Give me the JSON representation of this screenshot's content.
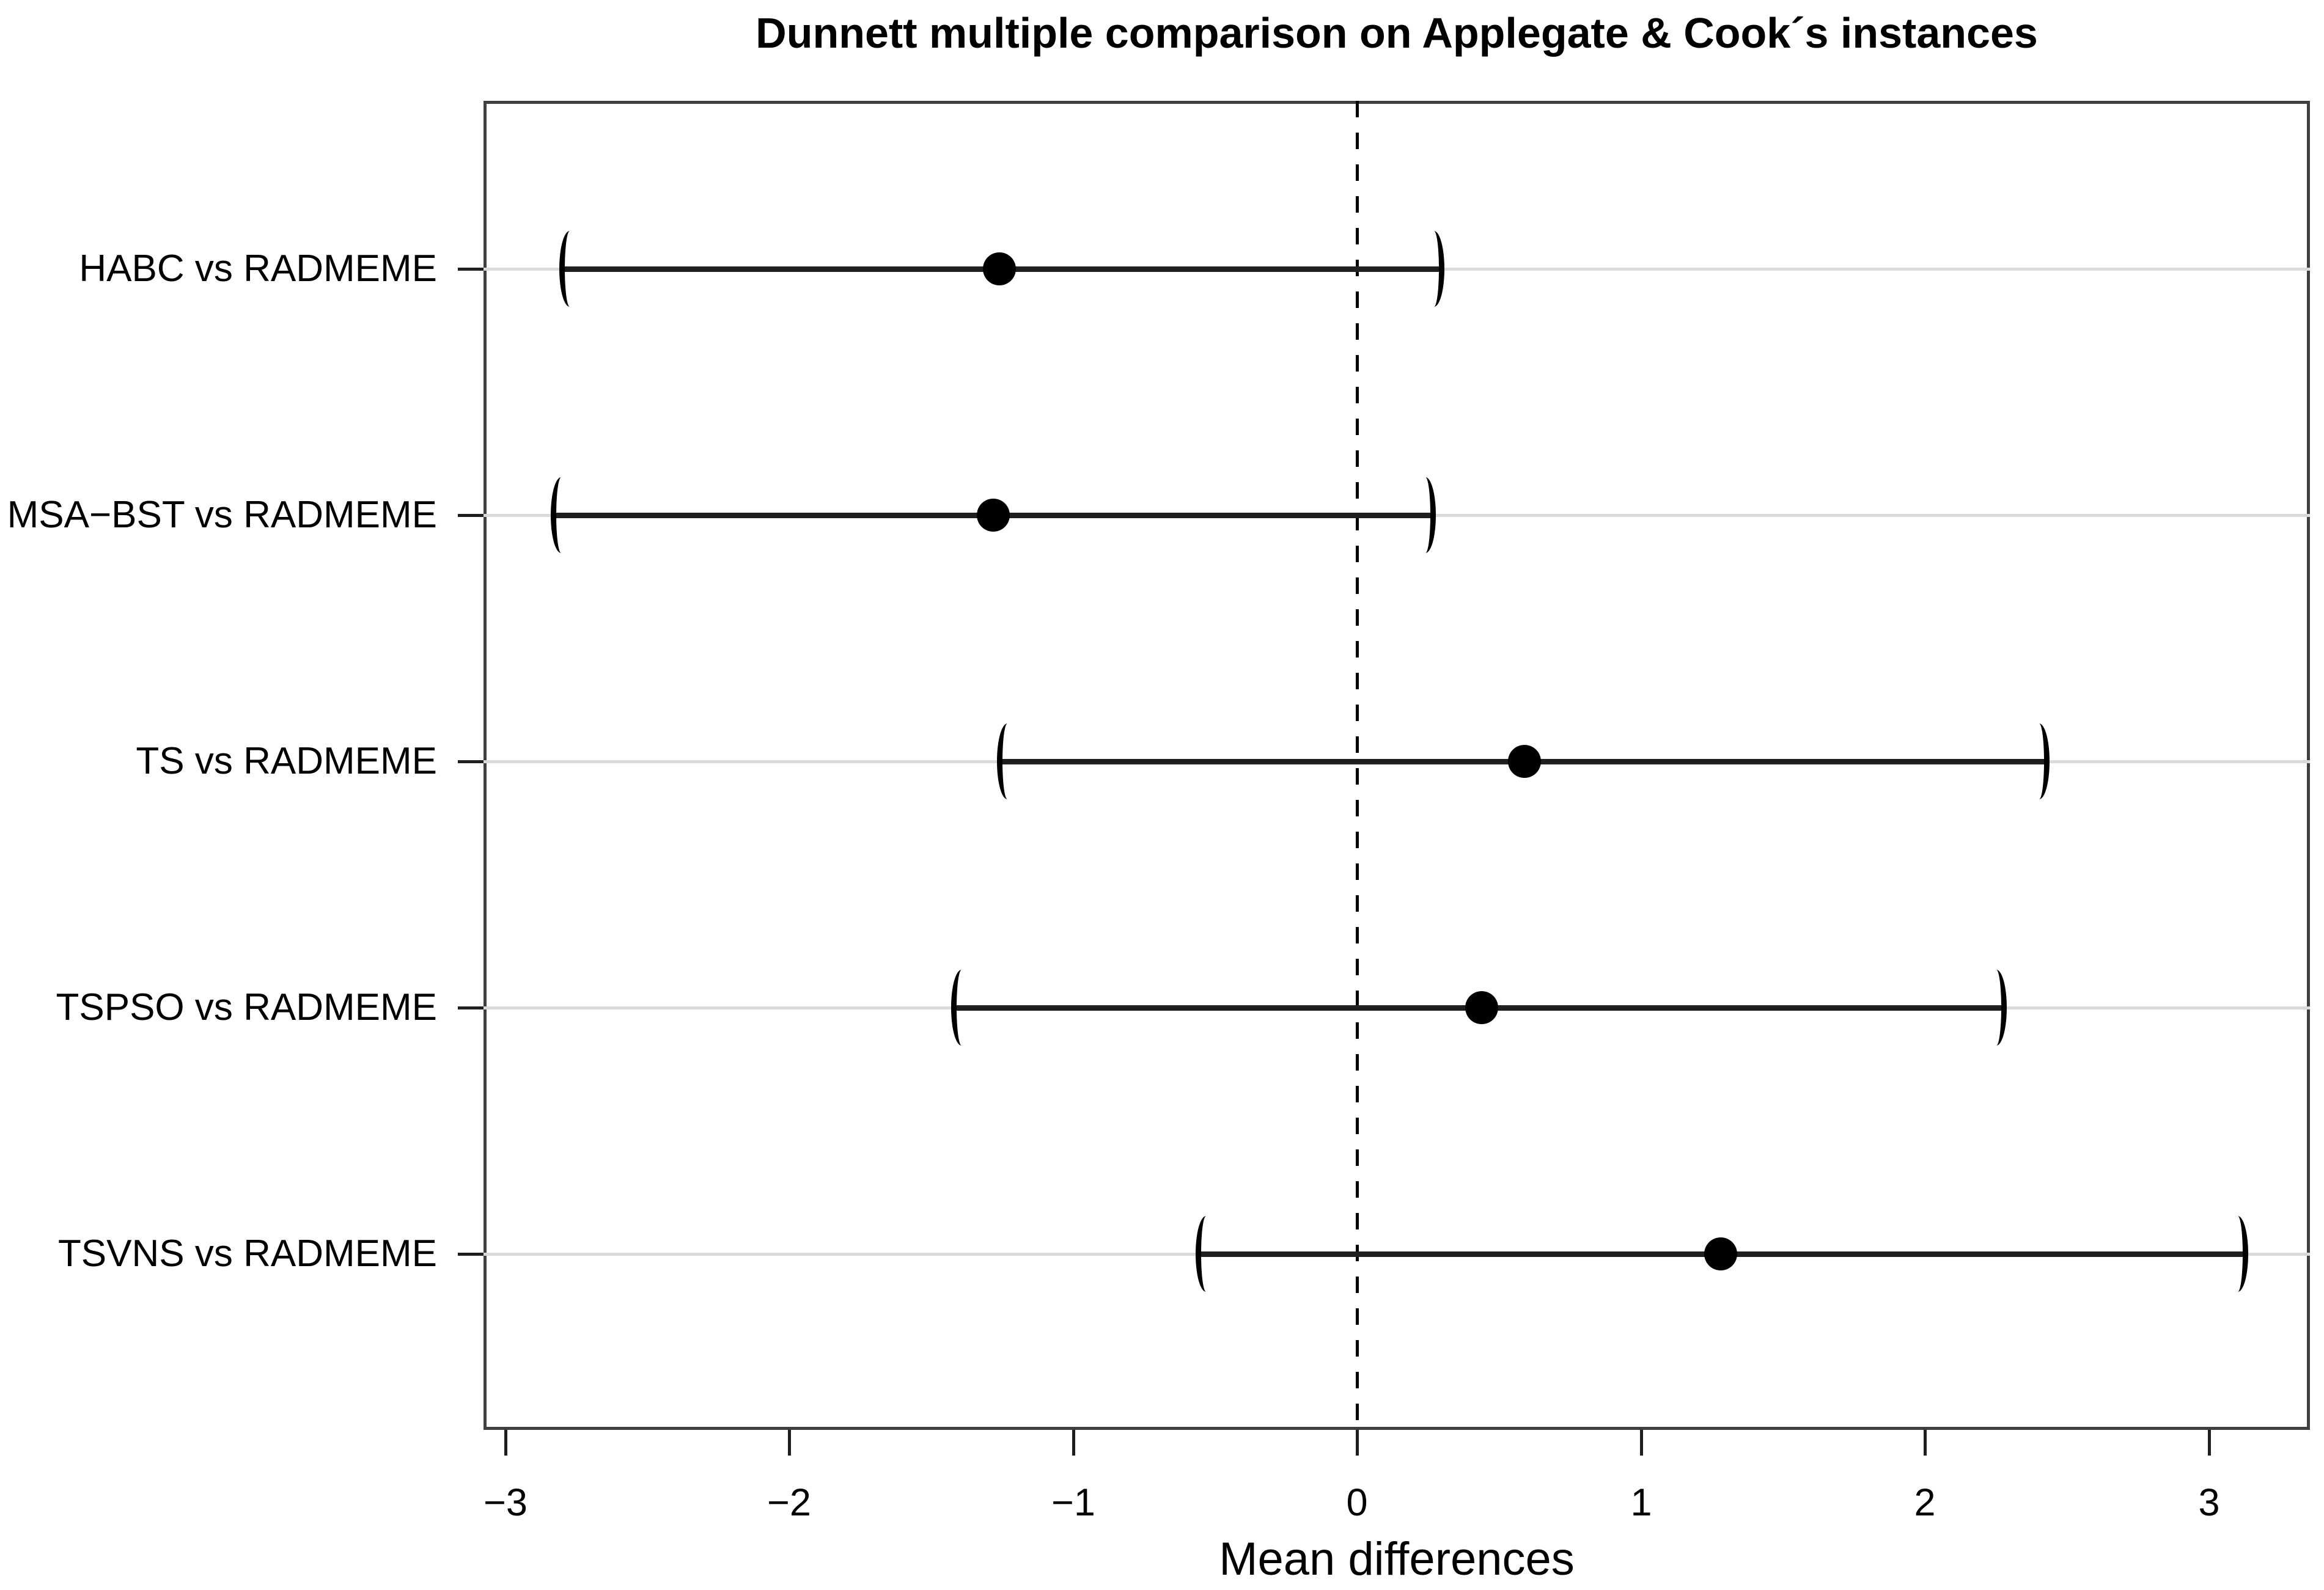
{
  "title": "Dunnett multiple comparison on Applegate & Cook´s instances",
  "colors": {
    "foreground": "#000000",
    "box_border": "#3f3f3f",
    "interval_line": "#1f1f1f",
    "row_guide_line": "#dadada",
    "background": "#ffffff"
  },
  "chart_data": {
    "type": "scatter",
    "subtype": "dunnett-confidence-interval-forest-plot",
    "title": "Dunnett multiple comparison on Applegate & Cook´s instances",
    "xlabel": "Mean differences",
    "ylabel": "",
    "grid": "off",
    "legend": "none",
    "zero_reference_line": {
      "value": 0,
      "style": "dashed"
    },
    "interval_cap_style": "parentheses",
    "xlim": [
      -3.08,
      3.36
    ],
    "x_ticks": [
      {
        "label": "−3",
        "value": -3
      },
      {
        "label": "−2",
        "value": -2
      },
      {
        "label": "−1",
        "value": -1
      },
      {
        "label": "0",
        "value": 0
      },
      {
        "label": "1",
        "value": 1
      },
      {
        "label": "2",
        "value": 2
      },
      {
        "label": "3",
        "value": 3
      }
    ],
    "categories": [
      "HABC vs RADMEME",
      "MSA−BST vs RADMEME",
      "TS vs RADMEME",
      "TSPSO vs RADMEME",
      "TSVNS vs RADMEME"
    ],
    "points": [
      {
        "label": "HABC vs RADMEME",
        "mean": -1.26,
        "ci_low": -2.8,
        "ci_high": 0.3
      },
      {
        "label": "MSA−BST vs RADMEME",
        "mean": -1.28,
        "ci_low": -2.83,
        "ci_high": 0.27
      },
      {
        "label": "TS vs RADMEME",
        "mean": 0.59,
        "ci_low": -1.26,
        "ci_high": 2.43
      },
      {
        "label": "TSPSO vs RADMEME",
        "mean": 0.44,
        "ci_low": -1.42,
        "ci_high": 2.28
      },
      {
        "label": "TSVNS vs RADMEME",
        "mean": 1.28,
        "ci_low": -0.56,
        "ci_high": 3.13
      }
    ]
  }
}
